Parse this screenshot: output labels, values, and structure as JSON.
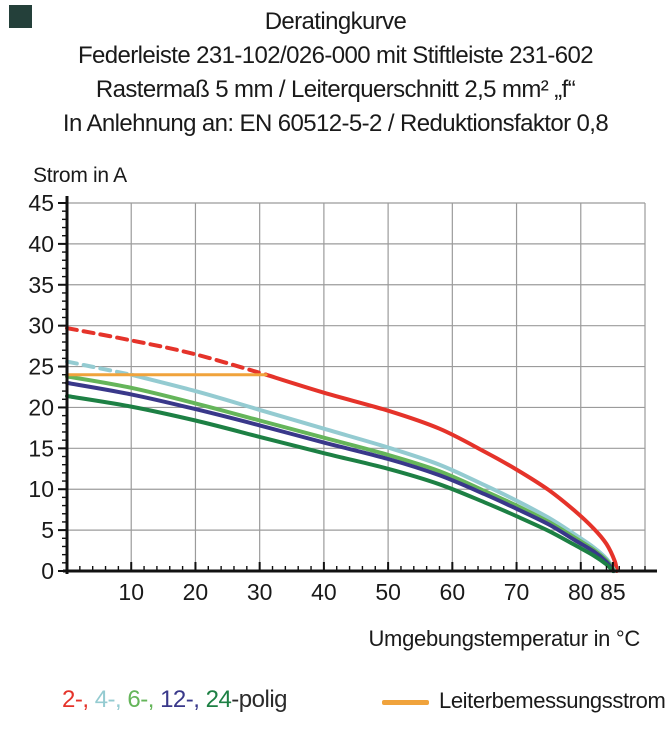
{
  "corner_mark": {
    "color": "#24403a"
  },
  "title": {
    "lines": [
      "Deratingkurve",
      "Federleiste 231-102/026-000 mit Stiftleiste 231-602",
      "Rastermaß 5 mm / Leiterquerschnitt 2,5 mm² „f“",
      "In Anlehnung an: EN 60512-5-2 / Reduktionsfaktor 0,8"
    ]
  },
  "y_axis_title": "Strom in A",
  "x_axis_title": "Umgebungstemperatur in °C",
  "legend": {
    "series_segments": [
      {
        "text": "2-, ",
        "color": "#e5332a"
      },
      {
        "text": "4-, ",
        "color": "#94cbd1"
      },
      {
        "text": "6-, ",
        "color": "#65b55a"
      },
      {
        "text": "12-, ",
        "color": "#39388a"
      },
      {
        "text": "24",
        "color": "#1d8044"
      },
      {
        "text": "-polig",
        "color": "#2b2b2b"
      }
    ],
    "rated_current_label": "Leiterbemessungsstrom",
    "rated_current_color": "#f0a33c"
  },
  "chart_data": {
    "type": "line",
    "title": "Deratingkurve",
    "xlabel": "Umgebungstemperatur in °C",
    "ylabel": "Strom in A",
    "xlim": [
      0,
      90
    ],
    "ylim": [
      0,
      45
    ],
    "x_major_ticks": [
      10,
      20,
      30,
      40,
      50,
      60,
      70,
      80,
      85
    ],
    "x_minor_step": 2,
    "y_major_ticks": [
      0,
      5,
      10,
      15,
      20,
      25,
      30,
      35,
      40,
      45
    ],
    "y_minor_step": 1,
    "grid": true,
    "grid_color": "#9b9b9b",
    "axis_color": "#111111",
    "legend_position": "bottom",
    "series": [
      {
        "name": "2-polig",
        "color": "#e5332a",
        "width": 4,
        "dash_until_x": 31,
        "points": [
          [
            0,
            29.7
          ],
          [
            10,
            28.2
          ],
          [
            20,
            26.5
          ],
          [
            31,
            24.0
          ],
          [
            40,
            21.8
          ],
          [
            50,
            19.6
          ],
          [
            58,
            17.4
          ],
          [
            65,
            14.6
          ],
          [
            70,
            12.4
          ],
          [
            75,
            9.9
          ],
          [
            79,
            7.4
          ],
          [
            82,
            5.2
          ],
          [
            84,
            3.3
          ],
          [
            85.3,
            1.2
          ],
          [
            85.6,
            0
          ]
        ]
      },
      {
        "name": "4-polig",
        "color": "#94cbd1",
        "width": 4,
        "dash_until_x": 10,
        "points": [
          [
            0,
            25.6
          ],
          [
            10,
            24.0
          ],
          [
            20,
            22.0
          ],
          [
            30,
            19.7
          ],
          [
            40,
            17.4
          ],
          [
            50,
            15.1
          ],
          [
            58,
            13.0
          ],
          [
            65,
            10.5
          ],
          [
            70,
            8.6
          ],
          [
            75,
            6.5
          ],
          [
            79,
            4.5
          ],
          [
            82,
            2.9
          ],
          [
            84,
            1.5
          ],
          [
            85.3,
            0
          ]
        ]
      },
      {
        "name": "6-polig",
        "color": "#65b55a",
        "width": 4,
        "dash_until_x": null,
        "points": [
          [
            0,
            23.8
          ],
          [
            10,
            22.4
          ],
          [
            20,
            20.5
          ],
          [
            30,
            18.4
          ],
          [
            40,
            16.3
          ],
          [
            50,
            14.2
          ],
          [
            58,
            12.2
          ],
          [
            65,
            9.8
          ],
          [
            70,
            8.0
          ],
          [
            75,
            6.0
          ],
          [
            79,
            4.1
          ],
          [
            82,
            2.6
          ],
          [
            84,
            1.3
          ],
          [
            85.2,
            0
          ]
        ]
      },
      {
        "name": "12-polig",
        "color": "#39388a",
        "width": 4,
        "dash_until_x": null,
        "points": [
          [
            0,
            23.0
          ],
          [
            10,
            21.6
          ],
          [
            20,
            19.8
          ],
          [
            30,
            17.8
          ],
          [
            40,
            15.7
          ],
          [
            50,
            13.7
          ],
          [
            58,
            11.7
          ],
          [
            65,
            9.4
          ],
          [
            70,
            7.6
          ],
          [
            75,
            5.7
          ],
          [
            79,
            3.8
          ],
          [
            82,
            2.4
          ],
          [
            84,
            1.1
          ],
          [
            85.1,
            0
          ]
        ]
      },
      {
        "name": "24-polig",
        "color": "#1d8044",
        "width": 4,
        "dash_until_x": null,
        "points": [
          [
            0,
            21.4
          ],
          [
            10,
            20.1
          ],
          [
            20,
            18.4
          ],
          [
            30,
            16.4
          ],
          [
            40,
            14.4
          ],
          [
            50,
            12.5
          ],
          [
            58,
            10.6
          ],
          [
            65,
            8.4
          ],
          [
            70,
            6.7
          ],
          [
            75,
            4.9
          ],
          [
            79,
            3.2
          ],
          [
            82,
            1.9
          ],
          [
            84,
            0.8
          ],
          [
            85,
            0
          ]
        ]
      },
      {
        "name": "Leiterbemessungsstrom",
        "color": "#f0a33c",
        "width": 3,
        "dash_until_x": null,
        "points": [
          [
            0,
            24
          ],
          [
            31,
            24
          ]
        ]
      }
    ]
  }
}
